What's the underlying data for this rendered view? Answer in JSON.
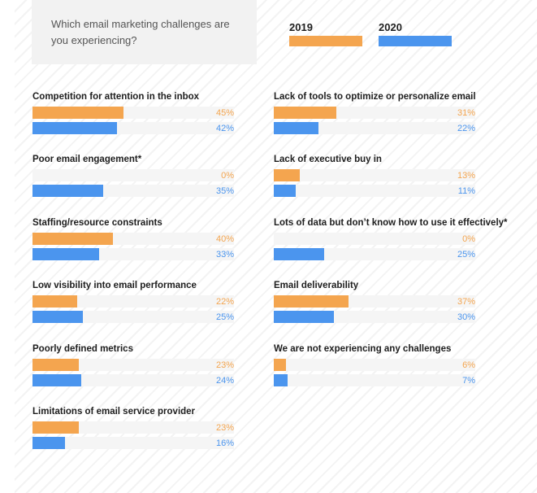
{
  "question": "Which email marketing challenges are you experiencing?",
  "colors": {
    "y2019": "#f4a54f",
    "y2020": "#4b95ee"
  },
  "chart_data": {
    "type": "bar",
    "orientation": "horizontal",
    "unit": "%",
    "xlim": [
      0,
      100
    ],
    "series": [
      {
        "name": "2019"
      },
      {
        "name": "2020"
      }
    ],
    "items": [
      {
        "label": "Competition for attention in the inbox",
        "values": [
          45,
          42
        ],
        "display": [
          "45%",
          "42%"
        ]
      },
      {
        "label": "Poor email engagement*",
        "values": [
          0,
          35
        ],
        "display": [
          "0%",
          "35%"
        ]
      },
      {
        "label": "Staffing/resource constraints",
        "values": [
          40,
          33
        ],
        "display": [
          "40%",
          "33%"
        ]
      },
      {
        "label": "Low visibility into email performance",
        "values": [
          22,
          25
        ],
        "display": [
          "22%",
          "25%"
        ]
      },
      {
        "label": "Poorly defined metrics",
        "values": [
          23,
          24
        ],
        "display": [
          "23%",
          "24%"
        ]
      },
      {
        "label": "Limitations of email service provider",
        "values": [
          23,
          16
        ],
        "display": [
          "23%",
          "16%"
        ]
      },
      {
        "label": "Lack of tools to optimize or personalize email",
        "values": [
          31,
          22
        ],
        "display": [
          "31%",
          "22%"
        ]
      },
      {
        "label": "Lack of executive buy in",
        "values": [
          13,
          11
        ],
        "display": [
          "13%",
          "11%"
        ]
      },
      {
        "label": "Lots of data but don’t know how to use it effectively*",
        "values": [
          0,
          25
        ],
        "display": [
          "0%",
          "25%"
        ]
      },
      {
        "label": "Email deliverability",
        "values": [
          37,
          30
        ],
        "display": [
          "37%",
          "30%"
        ]
      },
      {
        "label": "We are not experiencing any challenges",
        "values": [
          6,
          7
        ],
        "display": [
          "6%",
          "7%"
        ]
      }
    ]
  }
}
